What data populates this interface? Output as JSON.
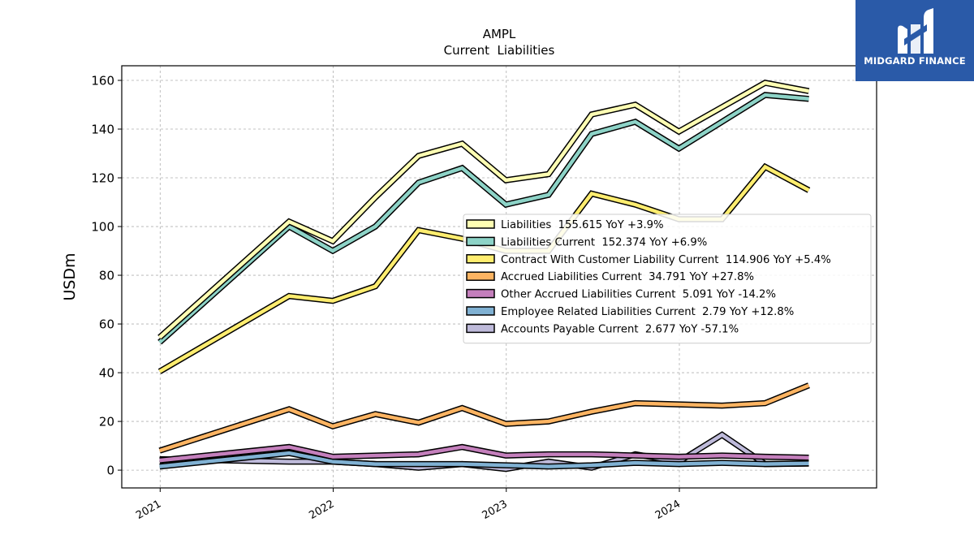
{
  "brand": {
    "name": "MIDGARD FINANCE",
    "logo_icon": "midgard-m-logo-icon",
    "bg_color": "#2a5aa8"
  },
  "chart_data": {
    "type": "line",
    "title": "AMPL",
    "subtitle": "Current  Liabilities",
    "xlabel": "",
    "ylabel": "USDm",
    "xlim": [
      "2020-10-12",
      "2025-02-20"
    ],
    "ylim": [
      -7.3,
      166
    ],
    "yticks": [
      0,
      20,
      40,
      60,
      80,
      100,
      120,
      140,
      160
    ],
    "xticks": [
      {
        "label": "2021",
        "date": "2021-01-01"
      },
      {
        "label": "2022",
        "date": "2022-01-01"
      },
      {
        "label": "2023",
        "date": "2023-01-01"
      },
      {
        "label": "2024",
        "date": "2024-01-01"
      }
    ],
    "grid": true,
    "legend_position": "center-right",
    "x": [
      "2020-12-31",
      "2021-09-30",
      "2021-12-31",
      "2022-03-31",
      "2022-06-30",
      "2022-09-30",
      "2022-12-31",
      "2023-03-31",
      "2023-06-30",
      "2023-09-30",
      "2023-12-31",
      "2024-03-31",
      "2024-06-30",
      "2024-09-30"
    ],
    "series": [
      {
        "name": "Liabilities",
        "legend": "Liabilities  155.615 YoY +3.9%",
        "color": "#ffffb3",
        "values": [
          54.5,
          102,
          94,
          112,
          129,
          134,
          119,
          121.5,
          146,
          150,
          139,
          149,
          159,
          155.6
        ]
      },
      {
        "name": "Liabilities Current",
        "legend": "Liabilities Current  152.374 YoY +6.9%",
        "color": "#8dd3c7",
        "values": [
          52.5,
          100,
          90,
          100,
          118,
          124,
          109,
          113,
          138,
          143,
          132,
          143,
          154,
          152.4
        ]
      },
      {
        "name": "Contract With Customer Liability Current",
        "legend": "Contract With Customer Liability Current  114.906 YoY +5.4%",
        "color": "#ffed6f",
        "values": [
          40.5,
          71.5,
          69.5,
          75.5,
          98.5,
          95,
          90,
          90,
          113.5,
          109,
          103,
          103,
          124.5,
          114.9
        ]
      },
      {
        "name": "Accrued Liabilities Current",
        "legend": "Accrued Liabilities Current  34.791 YoY +27.8%",
        "color": "#fdb462",
        "values": [
          8,
          25,
          18,
          23,
          19.5,
          25.5,
          19,
          20,
          24,
          27.5,
          27,
          26.5,
          27.5,
          34.8
        ]
      },
      {
        "name": "Other Accrued Liabilities Current",
        "legend": "Other Accrued Liabilities Current  5.091 YoY -14.2%",
        "color": "#c47fbc",
        "values": [
          4,
          9.5,
          5.5,
          6,
          6.5,
          9.5,
          6,
          6.5,
          6.5,
          6,
          5.5,
          6,
          5.5,
          5.1
        ]
      },
      {
        "name": "Employee Related Liabilities Current",
        "legend": "Employee Related Liabilities Current  2.79 YoY +12.8%",
        "color": "#80b1d3",
        "values": [
          1.5,
          7,
          3.5,
          2.5,
          2.5,
          2.5,
          2,
          1.5,
          2,
          3,
          2.5,
          3,
          2.5,
          2.8
        ]
      },
      {
        "name": "Accounts Payable Current",
        "legend": "Accounts Payable Current  2.677 YoY -57.1%",
        "color": "#bebada",
        "values": [
          4.5,
          3.5,
          3.5,
          2.5,
          1,
          2.5,
          0.5,
          3.5,
          1,
          6.5,
          3.5,
          14.5,
          2.5,
          2.7
        ]
      }
    ]
  }
}
